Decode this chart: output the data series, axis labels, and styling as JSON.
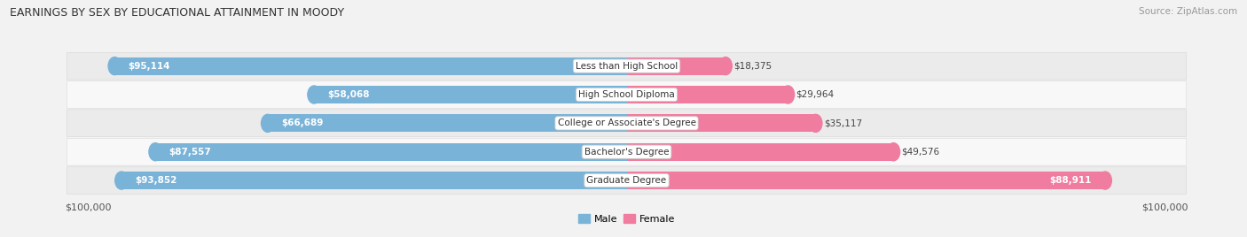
{
  "title": "EARNINGS BY SEX BY EDUCATIONAL ATTAINMENT IN MOODY",
  "source": "Source: ZipAtlas.com",
  "categories": [
    "Less than High School",
    "High School Diploma",
    "College or Associate's Degree",
    "Bachelor's Degree",
    "Graduate Degree"
  ],
  "male_values": [
    95114,
    58068,
    66689,
    87557,
    93852
  ],
  "female_values": [
    18375,
    29964,
    35117,
    49576,
    88911
  ],
  "male_color": "#7ab3d8",
  "female_color": "#f07ca0",
  "max_value": 100000,
  "bar_height": 0.62,
  "fig_bg": "#f2f2f2",
  "row_bg_light": "#f8f8f8",
  "row_bg_dark": "#ebebeb",
  "xlabel_left": "$100,000",
  "xlabel_right": "$100,000",
  "title_fontsize": 9,
  "source_fontsize": 7.5,
  "label_fontsize": 7.5,
  "cat_fontsize": 7.5
}
